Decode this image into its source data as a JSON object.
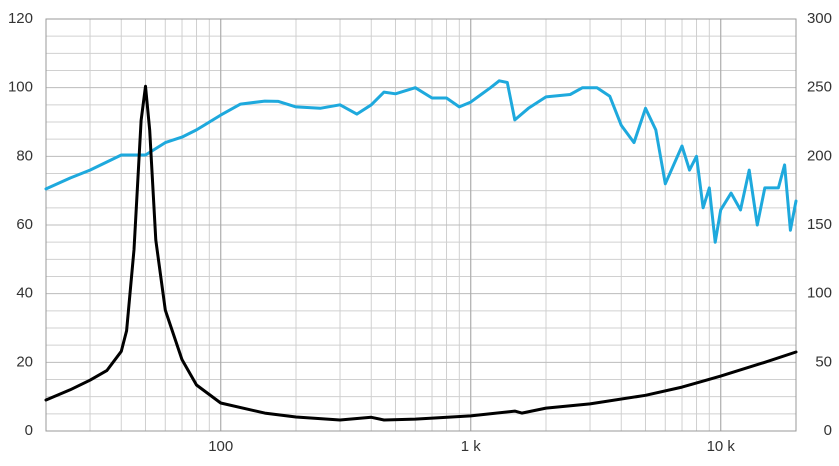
{
  "chart_data": {
    "type": "line",
    "xscale": "log",
    "xlim": [
      20,
      20000
    ],
    "xticks": [
      {
        "value": 100,
        "label": "100"
      },
      {
        "value": 1000,
        "label": "1 k"
      },
      {
        "value": 10000,
        "label": "10 k"
      }
    ],
    "ylim": [
      0,
      120
    ],
    "yticks": [
      0,
      20,
      40,
      60,
      80,
      100,
      120
    ],
    "yminorticks": [
      10,
      30,
      50,
      70,
      90,
      110,
      5,
      15,
      25,
      35,
      45,
      55,
      65,
      75,
      85,
      95,
      105,
      115
    ],
    "y2lim": [
      0,
      300
    ],
    "y2ticks": [
      0,
      50,
      100,
      150,
      200,
      250,
      300
    ],
    "grid": true,
    "series": [
      {
        "color": "#1ea9dd",
        "axis": "y",
        "x": [
          20,
          25,
          30,
          40,
          50,
          60,
          70,
          80,
          100,
          120,
          150,
          170,
          200,
          250,
          300,
          350,
          400,
          450,
          500,
          600,
          700,
          800,
          900,
          1000,
          1100,
          1200,
          1300,
          1400,
          1500,
          1700,
          2000,
          2500,
          2800,
          3200,
          3600,
          4000,
          4500,
          5000,
          5500,
          6000,
          7000,
          7500,
          8000,
          8500,
          9000,
          9500,
          10000,
          11000,
          12000,
          13000,
          14000,
          15000,
          17000,
          18000,
          19000,
          20000
        ],
        "values": [
          70.5,
          73.7,
          76,
          80.4,
          80.4,
          84,
          85.6,
          87.7,
          92,
          95.2,
          96.1,
          96,
          94.4,
          94,
          95,
          92.3,
          95,
          98.7,
          98.2,
          100,
          97,
          97,
          94.4,
          95.8,
          98,
          100,
          102,
          101.5,
          90.6,
          94,
          97.3,
          98,
          100,
          100,
          97.5,
          89,
          84,
          94,
          87.7,
          72,
          83,
          76,
          80,
          65,
          70.8,
          55,
          64.4,
          69.3,
          64.4,
          76,
          60,
          70.8,
          70.8,
          77.5,
          58.5,
          67
        ]
      },
      {
        "color": "#000000",
        "axis": "y2",
        "x": [
          20,
          25,
          30,
          35,
          40,
          42,
          45,
          48,
          50,
          52,
          55,
          60,
          70,
          80,
          100,
          150,
          200,
          300,
          400,
          450,
          600,
          1000,
          1500,
          1600,
          2000,
          3000,
          5000,
          7000,
          10000,
          15000,
          20000
        ],
        "values": [
          22.6,
          30,
          37,
          44,
          58,
          73,
          132,
          226,
          251,
          219,
          139,
          88,
          52,
          33.5,
          20.4,
          13,
          10.2,
          8,
          10,
          8,
          8.7,
          11,
          14.5,
          13,
          16.7,
          19.7,
          26,
          32,
          40,
          50,
          57.5
        ]
      }
    ]
  }
}
